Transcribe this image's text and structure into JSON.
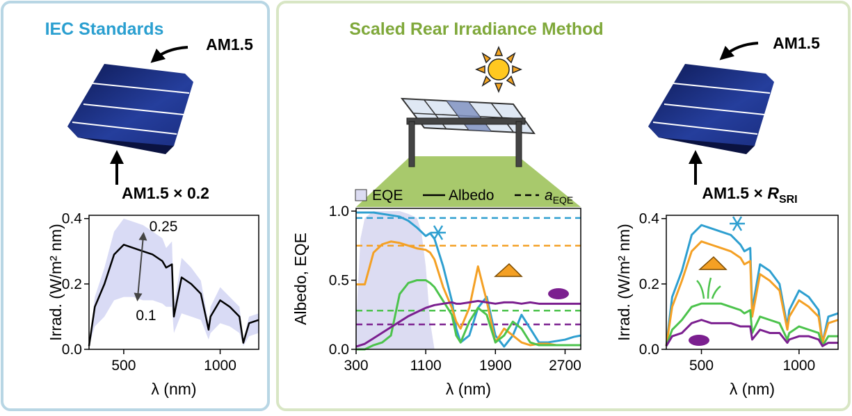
{
  "panels": [
    {
      "title": "IEC Standards",
      "arrow_label": "AM1.5"
    },
    {
      "title": "Scaled Rear Irradiance Method"
    },
    {
      "arrow_label": "AM1.5"
    }
  ],
  "chart_data": [
    {
      "type": "line",
      "title": "AM1.5 × 0.2",
      "xlabel": "λ (nm)",
      "ylabel": "Irrad. (W/m² nm)",
      "x": [
        320,
        350,
        400,
        450,
        500,
        550,
        600,
        650,
        700,
        720,
        750,
        760,
        800,
        850,
        900,
        940,
        950,
        1000,
        1050,
        1100,
        1120,
        1150,
        1200
      ],
      "series": [
        {
          "color": "#000000",
          "values": [
            0.01,
            0.13,
            0.2,
            0.29,
            0.32,
            0.31,
            0.3,
            0.29,
            0.27,
            0.25,
            0.26,
            0.1,
            0.22,
            0.2,
            0.17,
            0.06,
            0.1,
            0.15,
            0.13,
            0.1,
            0.02,
            0.08,
            0.09
          ]
        }
      ],
      "band": {
        "color": "#d9dbf5",
        "upper": [
          0.01,
          0.16,
          0.25,
          0.36,
          0.4,
          0.39,
          0.38,
          0.36,
          0.34,
          0.31,
          0.33,
          0.13,
          0.28,
          0.25,
          0.21,
          0.08,
          0.13,
          0.19,
          0.16,
          0.13,
          0.03,
          0.1,
          0.11
        ],
        "lower": [
          0.01,
          0.07,
          0.1,
          0.15,
          0.16,
          0.16,
          0.15,
          0.15,
          0.14,
          0.13,
          0.13,
          0.05,
          0.11,
          0.1,
          0.09,
          0.03,
          0.05,
          0.08,
          0.07,
          0.05,
          0.01,
          0.04,
          0.05
        ]
      },
      "annotations": [
        "0.25",
        "0.1"
      ],
      "xlim": [
        320,
        1200
      ],
      "ylim": [
        0,
        0.41
      ],
      "xticks": [
        500,
        1000
      ],
      "yticks": [
        {
          "value": 0,
          "label": "0.0"
        },
        0.2,
        0.4
      ]
    },
    {
      "type": "line",
      "xlabel": "λ (nm)",
      "ylabel": "Albedo, EQE",
      "legend": [
        {
          "label": "EQE"
        },
        {
          "label": "Albedo"
        },
        {
          "label": "a",
          "sub": "EQE"
        }
      ],
      "x": [
        300,
        400,
        500,
        600,
        700,
        800,
        900,
        1000,
        1100,
        1150,
        1200,
        1300,
        1400,
        1450,
        1500,
        1600,
        1700,
        1800,
        1900,
        2000,
        2100,
        2200,
        2300,
        2400,
        2500,
        2600,
        2700,
        2800,
        2880
      ],
      "series": [
        {
          "color": "#2e9fd0",
          "values": [
            0.99,
            0.99,
            0.99,
            0.98,
            0.97,
            0.96,
            0.93,
            0.88,
            0.82,
            0.84,
            0.8,
            0.6,
            0.35,
            0.15,
            0.05,
            0.1,
            0.3,
            0.38,
            0.1,
            0.02,
            0.1,
            0.25,
            0.15,
            0.05,
            0.05,
            0.06,
            0.07,
            0.09,
            0.1
          ]
        },
        {
          "color": "#f4a024",
          "values": [
            0.47,
            0.47,
            0.7,
            0.76,
            0.78,
            0.77,
            0.75,
            0.73,
            0.72,
            0.7,
            0.65,
            0.45,
            0.3,
            0.2,
            0.15,
            0.3,
            0.6,
            0.35,
            0.05,
            0.15,
            0.1,
            0.05,
            0.03,
            0.04,
            0.04,
            0.03,
            0.03,
            0.03,
            0.03
          ]
        },
        {
          "color": "#4cc34c",
          "values": [
            0,
            0,
            0.03,
            0.05,
            0.1,
            0.4,
            0.48,
            0.5,
            0.5,
            0.48,
            0.45,
            0.35,
            0.25,
            0.1,
            0.05,
            0.2,
            0.3,
            0.25,
            0.05,
            0.1,
            0.2,
            0.15,
            0.05,
            0.03,
            0.03,
            0.03,
            0.03,
            0.03,
            0.03
          ]
        },
        {
          "color": "#7b1f8f",
          "values": [
            0.02,
            0.04,
            0.08,
            0.12,
            0.16,
            0.2,
            0.24,
            0.27,
            0.3,
            0.31,
            0.32,
            0.33,
            0.34,
            0.33,
            0.33,
            0.34,
            0.35,
            0.34,
            0.33,
            0.34,
            0.34,
            0.33,
            0.34,
            0.33,
            0.33,
            0.33,
            0.33,
            0.33,
            0.33
          ]
        }
      ],
      "eqe": {
        "color": "#dcdcf2",
        "x": [
          300,
          350,
          400,
          500,
          600,
          700,
          800,
          900,
          1000,
          1050,
          1100,
          1150,
          1200
        ],
        "values": [
          0.2,
          0.8,
          0.95,
          1.0,
          1.0,
          1.0,
          1.0,
          0.98,
          0.95,
          0.85,
          0.6,
          0.2,
          0
        ]
      },
      "a_eqe": [
        {
          "color": "#2e9fd0",
          "value": 0.95
        },
        {
          "color": "#f4a024",
          "value": 0.75
        },
        {
          "color": "#4cc34c",
          "value": 0.28
        },
        {
          "color": "#7b1f8f",
          "value": 0.18
        }
      ],
      "xlim": [
        300,
        2880
      ],
      "ylim": [
        0,
        1.02
      ],
      "xticks": [
        300,
        1100,
        1900,
        2700
      ],
      "yticks": [
        {
          "value": 0,
          "label": "0.0"
        },
        0.5,
        {
          "value": 1,
          "label": "1.0"
        }
      ]
    },
    {
      "type": "line",
      "title": "AM1.5 × ",
      "title_var": "R",
      "title_sub": "SRI",
      "xlabel": "λ (nm)",
      "ylabel": "Irrad. (W/m² nm)",
      "x": [
        320,
        350,
        400,
        450,
        500,
        550,
        600,
        650,
        700,
        720,
        750,
        760,
        800,
        850,
        900,
        940,
        950,
        1000,
        1050,
        1100,
        1120,
        1150,
        1200
      ],
      "series": [
        {
          "color": "#2e9fd0",
          "values": [
            0.01,
            0.16,
            0.24,
            0.35,
            0.38,
            0.37,
            0.36,
            0.35,
            0.32,
            0.3,
            0.31,
            0.12,
            0.26,
            0.24,
            0.2,
            0.07,
            0.12,
            0.18,
            0.16,
            0.12,
            0.02,
            0.1,
            0.11
          ]
        },
        {
          "color": "#f4a024",
          "values": [
            0.01,
            0.13,
            0.21,
            0.3,
            0.33,
            0.32,
            0.31,
            0.3,
            0.28,
            0.26,
            0.27,
            0.1,
            0.23,
            0.21,
            0.18,
            0.06,
            0.1,
            0.15,
            0.13,
            0.1,
            0.02,
            0.08,
            0.09
          ]
        },
        {
          "color": "#4cc34c",
          "values": [
            0.01,
            0.06,
            0.09,
            0.13,
            0.14,
            0.14,
            0.14,
            0.13,
            0.12,
            0.11,
            0.12,
            0.05,
            0.1,
            0.09,
            0.08,
            0.03,
            0.05,
            0.07,
            0.06,
            0.05,
            0.01,
            0.04,
            0.04
          ]
        },
        {
          "color": "#7b1f8f",
          "values": [
            0.01,
            0.04,
            0.05,
            0.08,
            0.09,
            0.08,
            0.08,
            0.08,
            0.07,
            0.07,
            0.07,
            0.03,
            0.06,
            0.05,
            0.05,
            0.02,
            0.03,
            0.04,
            0.04,
            0.03,
            0.01,
            0.02,
            0.02
          ]
        }
      ],
      "xlim": [
        320,
        1200
      ],
      "ylim": [
        0,
        0.41
      ],
      "xticks": [
        500,
        1000
      ],
      "yticks": [
        {
          "value": 0,
          "label": "0.0"
        },
        0.2,
        0.4
      ]
    }
  ]
}
